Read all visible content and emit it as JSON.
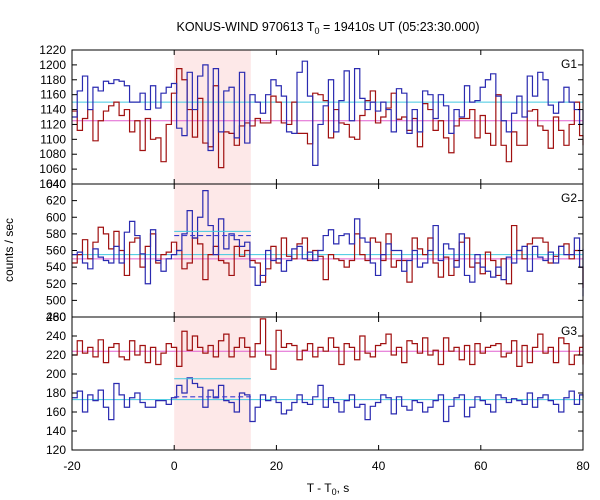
{
  "chart_data": {
    "type": "line",
    "title": {
      "prefix": "KONUS-WIND 970613 T",
      "sub": "0",
      "suffix": " = 19410s UT (05:23:30.000)"
    },
    "xlabel": {
      "prefix": "T - T",
      "sub": "0",
      "suffix": ", s"
    },
    "ylabel": "counts / sec",
    "xlim": [
      -20,
      80
    ],
    "xticks": [
      "-20",
      "0",
      "20",
      "40",
      "60",
      "80"
    ],
    "xtick_values": [
      -20,
      0,
      20,
      40,
      60,
      80
    ],
    "highlight_interval": [
      0,
      15
    ],
    "colors": {
      "series_red": "#a01010",
      "series_blue": "#2a2ab0",
      "bg_blue": "#40c8e0",
      "bg_red": "#e060d0",
      "highlight": "#fde8e8",
      "fit_blue": "#3a3ad0"
    },
    "bin_width": 1.024,
    "panels": [
      {
        "label": "G1",
        "ylim": [
          1040,
          1220
        ],
        "yticks": [
          1040,
          1060,
          1080,
          1100,
          1120,
          1140,
          1160,
          1180,
          1200,
          1220
        ],
        "bg_blue": 1150,
        "bg_red": 1125,
        "highlight_fit": [],
        "series": [
          {
            "color": "red",
            "x_start": -20,
            "values": [
              1138,
              1112,
              1128,
              1140,
              1098,
              1125,
              1138,
              1145,
              1150,
              1132,
              1140,
              1110,
              1125,
              1085,
              1128,
              1100,
              1102,
              1070,
              1120,
              1162,
              1195,
              1180,
              1140,
              1103,
              1155,
              1095,
              1090,
              1172,
              1062,
              1110,
              1108,
              1092,
              1118,
              1122,
              1118,
              1128,
              1122,
              1122,
              1158,
              1150,
              1122,
              1120,
              1150,
              1108,
              1108,
              1094,
              1162,
              1160,
              1152,
              1102,
              1140,
              1122,
              1120,
              1103,
              1100,
              1132,
              1152,
              1165,
              1122,
              1130,
              1142,
              1162,
              1127,
              1130,
              1112,
              1128,
              1090,
              1148,
              1140,
              1112,
              1125,
              1102,
              1082,
              1118,
              1128,
              1128,
              1140,
              1102,
              1132,
              1108,
              1092,
              1160,
              1092,
              1070,
              1110,
              1092,
              1092,
              1138,
              1140,
              1118,
              1112,
              1088,
              1130,
              1112,
              1092,
              1120,
              1150,
              1105,
              1092,
              1105
            ]
          },
          {
            "color": "blue",
            "x_start": -20,
            "values": [
              1130,
              1165,
              1185,
              1140,
              1170,
              1165,
              1178,
              1175,
              1180,
              1178,
              1172,
              1150,
              1150,
              1162,
              1140,
              1172,
              1142,
              1162,
              1170,
              1175,
              1115,
              1105,
              1190,
              1140,
              1185,
              1200,
              1085,
              1195,
              1110,
              1165,
              1170,
              1102,
              1190,
              1095,
              1160,
              1150,
              1135,
              1160,
              1180,
              1172,
              1158,
              1110,
              1108,
              1190,
              1205,
              1158,
              1065,
              1120,
              1145,
              1180,
              1110,
              1152,
              1192,
              1125,
              1195,
              1155,
              1140,
              1150,
              1138,
              1150,
              1140,
              1110,
              1168,
              1162,
              1108,
              1140,
              1110,
              1165,
              1160,
              1128,
              1160,
              1145,
              1108,
              1140,
              1130,
              1172,
              1150,
              1152,
              1170,
              1180,
              1188,
              1158,
              1125,
              1110,
              1135,
              1158,
              1130,
              1185,
              1158,
              1190,
              1180,
              1146,
              1135,
              1150,
              1170,
              1150,
              1140,
              1120,
              1135,
              1140
            ]
          }
        ]
      },
      {
        "label": "G2",
        "ylim": [
          480,
          640
        ],
        "yticks": [
          480,
          500,
          520,
          540,
          560,
          580,
          600,
          620,
          640
        ],
        "bg_blue": 555,
        "bg_red": 550,
        "highlight_fit": [
          {
            "x0": 0,
            "x1": 15,
            "y0": 583,
            "y1": 578
          }
        ],
        "series": [
          {
            "color": "red",
            "x_start": -20,
            "values": [
              545,
              555,
              573,
              550,
              570,
              588,
              580,
              562,
              583,
              560,
              530,
              570,
              575,
              540,
              565,
              580,
              545,
              555,
              558,
              570,
              560,
              538,
              545,
              575,
              568,
              525,
              555,
              565,
              548,
              545,
              530,
              565,
              553,
              560,
              548,
              545,
              522,
              538,
              565,
              545,
              575,
              553,
              550,
              568,
              575,
              548,
              560,
              553,
              525,
              555,
              550,
              548,
              540,
              548,
              580,
              555,
              548,
              575,
              570,
              548,
              580,
              540,
              548,
              548,
              522,
              575,
              562,
              555,
              575,
              545,
              528,
              552,
              530,
              548,
              570,
              575,
              540,
              545,
              532,
              558,
              548,
              530,
              550,
              520,
              590,
              560,
              550,
              568,
              575,
              575,
              570,
              545,
              553,
              565,
              568,
              550,
              560,
              540,
              540,
              515
            ]
          },
          {
            "color": "blue",
            "x_start": -20,
            "values": [
              555,
              558,
              545,
              538,
              562,
              552,
              548,
              545,
              565,
              545,
              582,
              595,
              578,
              556,
              520,
              585,
              548,
              535,
              550,
              555,
              560,
              580,
              608,
              575,
              600,
              632,
              590,
              555,
              598,
              562,
              580,
              573,
              565,
              570,
              540,
              518,
              530,
              560,
              548,
              550,
              535,
              548,
              562,
              565,
              550,
              558,
              548,
              560,
              578,
              585,
              568,
              578,
              580,
              568,
              598,
              575,
              570,
              545,
              530,
              555,
              568,
              560,
              560,
              535,
              548,
              560,
              540,
              545,
              560,
              590,
              548,
              568,
              562,
              540,
              580,
              530,
              522,
              555,
              540,
              535,
              528,
              540,
              525,
              552,
              545,
              560,
              565,
              535,
              565,
              552,
              548,
              558,
              545,
              565,
              555,
              555,
              575,
              540,
              562,
              505
            ]
          }
        ]
      },
      {
        "label": "G3",
        "ylim": [
          120,
          260
        ],
        "yticks": [
          120,
          140,
          160,
          180,
          200,
          220,
          240,
          260
        ],
        "bg_blue": 173,
        "bg_red": 224,
        "highlight_fit": [
          {
            "x0": 0,
            "x1": 15,
            "y0": 195,
            "y1": 176
          }
        ],
        "series": [
          {
            "color": "red",
            "x_start": -20,
            "values": [
              220,
              235,
              222,
              228,
              218,
              236,
              212,
              228,
              232,
              218,
              215,
              235,
              220,
              230,
              212,
              228,
              210,
              222,
              232,
              228,
              208,
              245,
              225,
              240,
              228,
              222,
              230,
              218,
              235,
              242,
              218,
              228,
              238,
              228,
              218,
              232,
              258,
              220,
              205,
              246,
              228,
              232,
              230,
              215,
              225,
              232,
              218,
              228,
              224,
              238,
              228,
              210,
              232,
              228,
              215,
              240,
              222,
              218,
              230,
              232,
              242,
              220,
              228,
              212,
              235,
              232,
              222,
              238,
              220,
              225,
              210,
              238,
              224,
              228,
              215,
              230,
              210,
              232,
              222,
              228,
              230,
              232,
              218,
              222,
              235,
              208,
              230,
              212,
              228,
              242,
              222,
              228,
              212,
              238,
              232,
              210,
              220,
              228,
              210,
              242
            ]
          },
          {
            "color": "blue",
            "x_start": -20,
            "values": [
              175,
              182,
              160,
              178,
              172,
              183,
              165,
              152,
              190,
              178,
              165,
              175,
              180,
              170,
              165,
              165,
              172,
              172,
              168,
              175,
              188,
              180,
              196,
              190,
              186,
              165,
              183,
              175,
              188,
              172,
              170,
              160,
              180,
              178,
              150,
              165,
              178,
              172,
              176,
              170,
              158,
              162,
              170,
              178,
              170,
              168,
              176,
              188,
              165,
              175,
              170,
              160,
              172,
              178,
              165,
              168,
              152,
              166,
              170,
              178,
              175,
              158,
              176,
              166,
              162,
              172,
              170,
              160,
              165,
              172,
              178,
              150,
              166,
              175,
              178,
              155,
              165,
              176,
              172,
              168,
              160,
              178,
              175,
              170,
              174,
              172,
              168,
              180,
              165,
              175,
              178,
              172,
              168,
              160,
              175,
              182,
              168,
              178,
              175,
              175
            ]
          }
        ]
      }
    ]
  }
}
